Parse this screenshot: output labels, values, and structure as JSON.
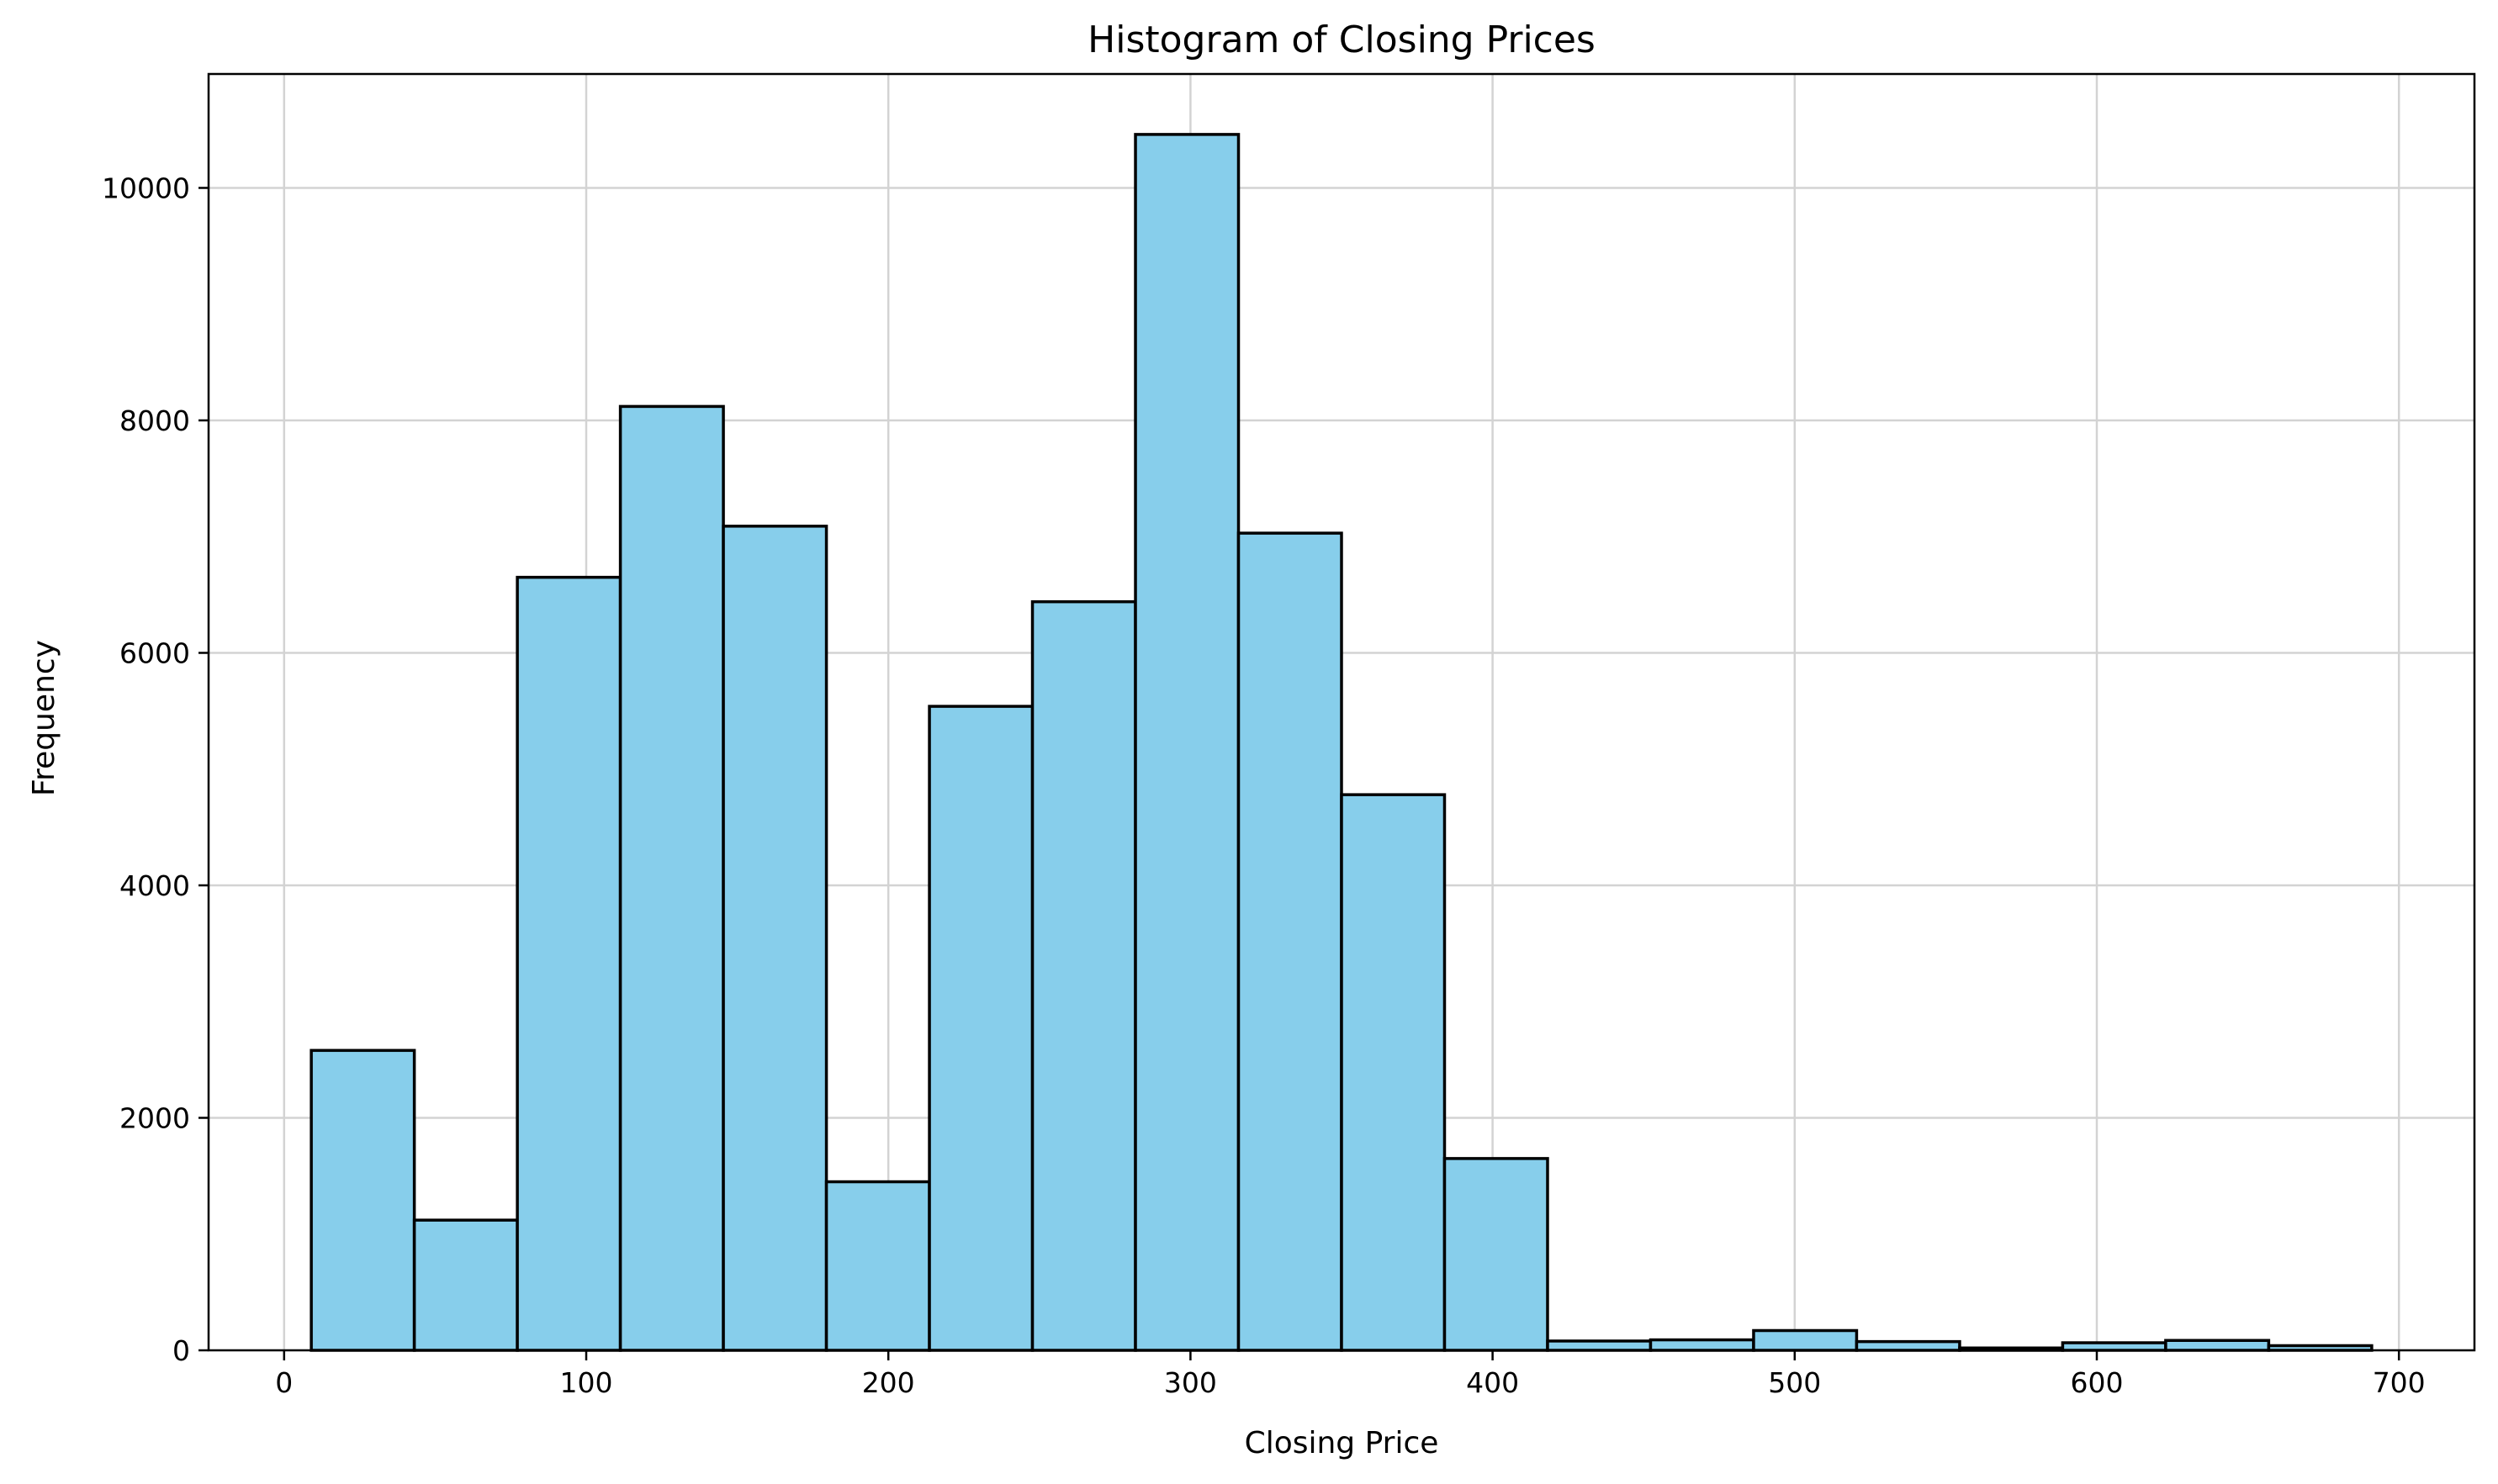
{
  "chart_data": {
    "type": "bar",
    "title": "Histogram of Closing Prices",
    "xlabel": "Closing Price",
    "ylabel": "Frequency",
    "xlim": [
      -25,
      725
    ],
    "ylim": [
      0,
      10980
    ],
    "xticks": [
      0,
      100,
      200,
      300,
      400,
      500,
      600,
      700
    ],
    "yticks": [
      0,
      2000,
      4000,
      6000,
      8000,
      10000
    ],
    "grid": true,
    "bar_color": "#87ceeb",
    "edge_color": "#000000",
    "bins": [
      {
        "x0": 9.0,
        "x1": 43.1,
        "count": 2580
      },
      {
        "x0": 43.1,
        "x1": 77.2,
        "count": 1120
      },
      {
        "x0": 77.2,
        "x1": 111.3,
        "count": 6650
      },
      {
        "x0": 111.3,
        "x1": 145.4,
        "count": 8120
      },
      {
        "x0": 145.4,
        "x1": 179.5,
        "count": 7090
      },
      {
        "x0": 179.5,
        "x1": 213.6,
        "count": 1450
      },
      {
        "x0": 213.6,
        "x1": 247.7,
        "count": 5540
      },
      {
        "x0": 247.7,
        "x1": 281.8,
        "count": 6440
      },
      {
        "x0": 281.8,
        "x1": 315.9,
        "count": 10460
      },
      {
        "x0": 315.9,
        "x1": 350.0,
        "count": 7030
      },
      {
        "x0": 350.0,
        "x1": 384.1,
        "count": 4780
      },
      {
        "x0": 384.1,
        "x1": 418.2,
        "count": 1650
      },
      {
        "x0": 418.2,
        "x1": 452.3,
        "count": 80
      },
      {
        "x0": 452.3,
        "x1": 486.4,
        "count": 90
      },
      {
        "x0": 486.4,
        "x1": 520.5,
        "count": 170
      },
      {
        "x0": 520.5,
        "x1": 554.6,
        "count": 75
      },
      {
        "x0": 554.6,
        "x1": 588.7,
        "count": 20
      },
      {
        "x0": 588.7,
        "x1": 622.8,
        "count": 65
      },
      {
        "x0": 622.8,
        "x1": 656.9,
        "count": 85
      },
      {
        "x0": 656.9,
        "x1": 691.0,
        "count": 40
      }
    ]
  }
}
